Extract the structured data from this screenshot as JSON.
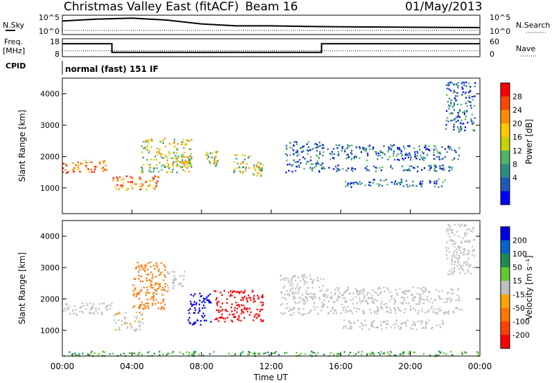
{
  "header": {
    "title": "Christmas Valley East (fitACF)",
    "beam": "Beam 16",
    "date": "01/May/2013"
  },
  "top_panels": {
    "nsky_label": "N.Sky",
    "nsearch_label": "N.Search",
    "nsky_ticks": [
      "10^5",
      "10^0"
    ],
    "nsearch_ticks": [
      "10^5",
      "10^0"
    ],
    "freq_label": "Freq.",
    "freq_unit": "[MHz]",
    "freq_ticks": [
      "18",
      "8"
    ],
    "nave_label": "Nave",
    "nave_ticks": [
      "60",
      "0"
    ],
    "cpid_label": "CPID",
    "cpid_value": "normal (fast) 151 IF"
  },
  "x_axis": {
    "label": "Time UT",
    "ticks": [
      "00:00",
      "04:00",
      "08:00",
      "12:00",
      "16:00",
      "20:00",
      "00:00"
    ]
  },
  "power_colorbar": {
    "label": "Power [dB]",
    "ticks": [
      "28",
      "24",
      "20",
      "16",
      "12",
      "8",
      "4"
    ],
    "colors": [
      "#ff0000",
      "#ff4800",
      "#ff8c00",
      "#ffc800",
      "#c8d200",
      "#50b464",
      "#2d8c82",
      "#1e5ab4",
      "#0000ff"
    ]
  },
  "velocity_colorbar": {
    "label": "Velocity [m s⁻¹]",
    "ticks": [
      "200",
      "100",
      "50",
      "15",
      "-15",
      "-50",
      "-100",
      "-200"
    ],
    "colors": [
      "#0000e6",
      "#0064c8",
      "#1e8c50",
      "#64c832",
      "#c0c0c0",
      "#ffa500",
      "#ff7800",
      "#ff4000",
      "#ff0000"
    ]
  },
  "chart_data": {
    "type": "heatmap",
    "panels": [
      {
        "name": "power",
        "ylabel": "Slant Range [km]",
        "yticks": [
          "1000",
          "2000",
          "3000",
          "4000"
        ],
        "xlim_hours": [
          0,
          24
        ],
        "ylim_km": [
          180,
          4500
        ],
        "bands": [
          {
            "t0": 0.0,
            "t1": 2.6,
            "r0": 1500,
            "r1": 1900,
            "level": "high"
          },
          {
            "t0": 2.8,
            "t1": 5.5,
            "r0": 950,
            "r1": 1400,
            "level": "high"
          },
          {
            "t0": 4.5,
            "t1": 7.4,
            "r0": 1500,
            "r1": 2600,
            "level": "mid"
          },
          {
            "t0": 6.8,
            "t1": 7.4,
            "r0": 1650,
            "r1": 2050,
            "level": "mid"
          },
          {
            "t0": 8.2,
            "t1": 8.9,
            "r0": 1700,
            "r1": 2200,
            "level": "mid"
          },
          {
            "t0": 9.8,
            "t1": 10.8,
            "r0": 1500,
            "r1": 2100,
            "level": "mid"
          },
          {
            "t0": 10.9,
            "t1": 11.5,
            "r0": 1400,
            "r1": 1850,
            "level": "mid"
          },
          {
            "t0": 12.8,
            "t1": 15.0,
            "r0": 1500,
            "r1": 2500,
            "level": "low"
          },
          {
            "t0": 15.0,
            "t1": 22.5,
            "r0": 1550,
            "r1": 1750,
            "level": "low"
          },
          {
            "t0": 15.2,
            "t1": 22.8,
            "r0": 1900,
            "r1": 2400,
            "level": "low"
          },
          {
            "t0": 16.0,
            "t1": 22.0,
            "r0": 1050,
            "r1": 1300,
            "level": "low"
          },
          {
            "t0": 22.0,
            "t1": 23.7,
            "r0": 2800,
            "r1": 4400,
            "level": "low"
          }
        ]
      },
      {
        "name": "velocity",
        "ylabel": "Slant Range [km]",
        "yticks": [
          "1000",
          "2000",
          "3000",
          "4000"
        ],
        "xlim_hours": [
          0,
          24
        ],
        "ylim_km": [
          180,
          4500
        ],
        "bands": [
          {
            "t0": 0.0,
            "t1": 2.9,
            "r0": 1500,
            "r1": 1900,
            "velocity": 0
          },
          {
            "t0": 2.9,
            "t1": 4.6,
            "r0": 1000,
            "r1": 1600,
            "velocity": -10
          },
          {
            "t0": 4.0,
            "t1": 6.0,
            "r0": 1700,
            "r1": 3200,
            "velocity": -60
          },
          {
            "t0": 6.0,
            "t1": 7.0,
            "r0": 2300,
            "r1": 2900,
            "velocity": 0
          },
          {
            "t0": 7.2,
            "t1": 8.5,
            "r0": 1200,
            "r1": 2200,
            "velocity": 210
          },
          {
            "t0": 8.7,
            "t1": 11.5,
            "r0": 1300,
            "r1": 2300,
            "velocity": -190
          },
          {
            "t0": 12.5,
            "t1": 15.0,
            "r0": 1500,
            "r1": 2800,
            "velocity": 0
          },
          {
            "t0": 15.0,
            "t1": 23.0,
            "r0": 1550,
            "r1": 1800,
            "velocity": 0
          },
          {
            "t0": 15.0,
            "t1": 22.8,
            "r0": 1850,
            "r1": 2400,
            "velocity": 0
          },
          {
            "t0": 16.0,
            "t1": 22.0,
            "r0": 1050,
            "r1": 1350,
            "velocity": 0
          },
          {
            "t0": 22.0,
            "t1": 23.7,
            "r0": 2800,
            "r1": 4400,
            "velocity": 0
          },
          {
            "t0": 0.0,
            "t1": 24.0,
            "r0": 200,
            "r1": 350,
            "velocity": 30
          }
        ]
      }
    ],
    "nsky": [
      {
        "t": 0.0,
        "v": 0.7
      },
      {
        "t": 2.0,
        "v": 0.8
      },
      {
        "t": 4.0,
        "v": 0.85
      },
      {
        "t": 6.0,
        "v": 0.75
      },
      {
        "t": 8.0,
        "v": 0.55
      },
      {
        "t": 10.0,
        "v": 0.45
      },
      {
        "t": 12.0,
        "v": 0.45
      },
      {
        "t": 14.0,
        "v": 0.42
      },
      {
        "t": 16.0,
        "v": 0.4
      },
      {
        "t": 20.0,
        "v": 0.38
      },
      {
        "t": 24.0,
        "v": 0.36
      }
    ],
    "frequency_mhz": [
      {
        "t": 0.0,
        "v": 15.2
      },
      {
        "t": 2.85,
        "v": 15.2
      },
      {
        "t": 2.85,
        "v": 10.4
      },
      {
        "t": 14.9,
        "v": 10.4
      },
      {
        "t": 14.9,
        "v": 15.2
      },
      {
        "t": 24.0,
        "v": 15.2
      }
    ],
    "nave": [
      {
        "t": 0.0,
        "v": 20
      },
      {
        "t": 24.0,
        "v": 20
      }
    ]
  }
}
